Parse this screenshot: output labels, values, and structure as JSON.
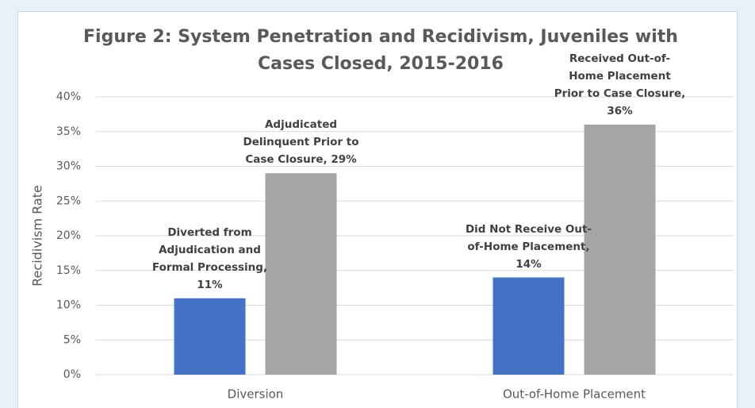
{
  "chart_data": {
    "type": "bar",
    "title": "Figure 2: System Penetration and Recidivism, Juveniles with Cases Closed, 2015-2016",
    "y_label": "Recidivism Rate",
    "categories": [
      "Diversion",
      "Out-of-Home Placement"
    ],
    "series": [
      {
        "color": "#4472c4",
        "values": [
          11,
          14
        ],
        "value_labels": [
          "Diverted from Adjudication and Formal Processing, 11%",
          "Did Not Receive Out-of-Home Placement, 14%"
        ]
      },
      {
        "color": "#a5a5a5",
        "values": [
          29,
          36
        ],
        "value_labels": [
          "Adjudicated Delinquent Prior to Case Closure, 29%",
          "Received Out-of-Home Placement Prior to Case Closure, 36%"
        ]
      }
    ],
    "ylim": [
      0,
      40
    ],
    "yticks": [
      {
        "value": 0,
        "label": "0%"
      },
      {
        "value": 5,
        "label": "5%"
      },
      {
        "value": 10,
        "label": "10%"
      },
      {
        "value": 15,
        "label": "15%"
      },
      {
        "value": 20,
        "label": "20%"
      },
      {
        "value": 25,
        "label": "25%"
      },
      {
        "value": 30,
        "label": "30%"
      },
      {
        "value": 35,
        "label": "35%"
      },
      {
        "value": 40,
        "label": "40%"
      }
    ],
    "grid": true
  }
}
